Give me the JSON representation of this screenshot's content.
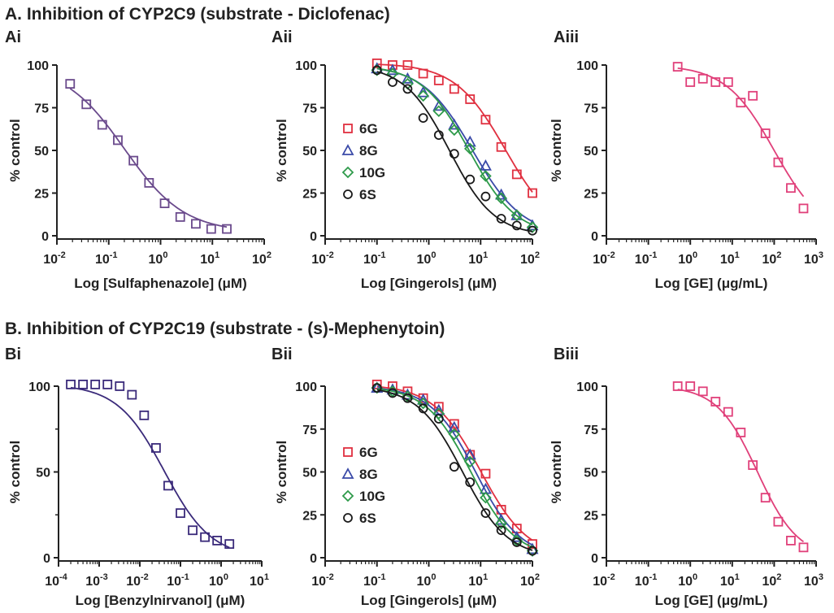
{
  "figure": {
    "sectionA_title": "A. Inhibition of CYP2C9 (substrate - Diclofenac)",
    "sectionB_title": "B. Inhibition of CYP2C19 (substrate - (s)-Mephenytoin)"
  },
  "chart_data": [
    {
      "id": "Ai",
      "type": "scatter",
      "panel_label": "Ai",
      "xlabel": "Log [Sulfaphenazole] (μM)",
      "ylabel": "% control",
      "xscale": "log",
      "xlim": [
        0.01,
        100
      ],
      "ylim": [
        0,
        100
      ],
      "xticks": [
        "10^-2",
        "10^-1",
        "10^0",
        "10^1",
        "10^2"
      ],
      "yticks": [
        0,
        25,
        50,
        75,
        100
      ],
      "legend": false,
      "series": [
        {
          "color": "#6a4a8c",
          "marker": "square",
          "x": [
            0.018,
            0.037,
            0.075,
            0.15,
            0.3,
            0.6,
            1.2,
            2.4,
            4.8,
            9.5,
            19
          ],
          "y": [
            89,
            77,
            65,
            56,
            44,
            31,
            19,
            11,
            7,
            4,
            4
          ],
          "fit": {
            "top": 100,
            "bottom": 2,
            "ic50": 0.2,
            "hill": 0.75
          }
        }
      ]
    },
    {
      "id": "Aii",
      "type": "scatter",
      "panel_label": "Aii",
      "xlabel": "Log [Gingerols] (μM)",
      "ylabel": "% control",
      "xscale": "log",
      "xlim": [
        0.01,
        100
      ],
      "ylim": [
        0,
        100
      ],
      "xticks": [
        "10^-2",
        "10^-1",
        "10^0",
        "10^1",
        "10^2"
      ],
      "yticks": [
        0,
        25,
        50,
        75,
        100
      ],
      "legend": true,
      "legend_position": "middle-left",
      "series": [
        {
          "name": "6G",
          "color": "#e03040",
          "marker": "square",
          "x": [
            0.1,
            0.2,
            0.39,
            0.78,
            1.56,
            3.1,
            6.25,
            12.5,
            25,
            50,
            100
          ],
          "y": [
            101,
            100,
            100,
            95,
            91,
            86,
            80,
            68,
            52,
            36,
            25
          ],
          "fit": {
            "top": 101,
            "bottom": 0,
            "ic50": 30,
            "hill": 0.9
          }
        },
        {
          "name": "8G",
          "color": "#3a4aa8",
          "marker": "triangle",
          "x": [
            0.1,
            0.2,
            0.39,
            0.78,
            1.56,
            3.1,
            6.25,
            12.5,
            25,
            50,
            100
          ],
          "y": [
            98,
            97,
            92,
            84,
            76,
            65,
            55,
            41,
            24,
            12,
            6
          ],
          "fit": {
            "top": 100,
            "bottom": 0,
            "ic50": 7,
            "hill": 0.9
          }
        },
        {
          "name": "10G",
          "color": "#2e9a4a",
          "marker": "diamond",
          "x": [
            0.1,
            0.2,
            0.39,
            0.78,
            1.56,
            3.1,
            6.25,
            12.5,
            25,
            50,
            100
          ],
          "y": [
            97,
            95,
            89,
            82,
            73,
            62,
            51,
            35,
            22,
            12,
            5
          ],
          "fit": {
            "top": 100,
            "bottom": 0,
            "ic50": 6,
            "hill": 0.95
          }
        },
        {
          "name": "6S",
          "color": "#1a1a1a",
          "marker": "circle",
          "x": [
            0.1,
            0.2,
            0.39,
            0.78,
            1.56,
            3.1,
            6.25,
            12.5,
            25,
            50,
            100
          ],
          "y": [
            97,
            90,
            86,
            69,
            59,
            48,
            33,
            23,
            10,
            6,
            3
          ],
          "fit": {
            "top": 100,
            "bottom": 0,
            "ic50": 2.5,
            "hill": 1.0
          }
        }
      ]
    },
    {
      "id": "Aiii",
      "type": "scatter",
      "panel_label": "Aiii",
      "xlabel": "Log [GE] (μg/mL)",
      "ylabel": "% control",
      "xscale": "log",
      "xlim": [
        0.01,
        1000
      ],
      "ylim": [
        0,
        100
      ],
      "xticks": [
        "10^-2",
        "10^-1",
        "10^0",
        "10^1",
        "10^2",
        "10^3"
      ],
      "yticks": [
        0,
        25,
        50,
        75,
        100
      ],
      "legend": false,
      "series": [
        {
          "color": "#e0407a",
          "marker": "square",
          "x": [
            0.5,
            1,
            2,
            4,
            8,
            16,
            31,
            62,
            125,
            250,
            500
          ],
          "y": [
            99,
            90,
            92,
            90,
            90,
            78,
            82,
            60,
            43,
            28,
            16
          ],
          "fit": {
            "top": 100,
            "bottom": 0,
            "ic50": 100,
            "hill": 0.75
          }
        }
      ]
    },
    {
      "id": "Bi",
      "type": "scatter",
      "panel_label": "Bi",
      "xlabel": "Log [Benzylnirvanol] (μM)",
      "ylabel": "% control",
      "xscale": "log",
      "xlim": [
        0.0001,
        10
      ],
      "ylim": [
        0,
        100
      ],
      "xticks": [
        "10^-4",
        "10^-3",
        "10^-2",
        "10^-1",
        "10^0",
        "10^1"
      ],
      "yticks": [
        0,
        50,
        100
      ],
      "legend": false,
      "series": [
        {
          "color": "#3a2a7a",
          "marker": "square",
          "x": [
            0.0002,
            0.0004,
            0.0008,
            0.0016,
            0.0032,
            0.0064,
            0.0128,
            0.025,
            0.05,
            0.1,
            0.2,
            0.4,
            0.8,
            1.6
          ],
          "y": [
            101,
            101,
            101,
            101,
            100,
            95,
            83,
            64,
            42,
            26,
            16,
            12,
            10,
            8
          ],
          "fit": {
            "top": 101,
            "bottom": 0,
            "ic50": 0.04,
            "hill": 0.75
          }
        }
      ]
    },
    {
      "id": "Bii",
      "type": "scatter",
      "panel_label": "Bii",
      "xlabel": "Log [Gingerols] (μM)",
      "ylabel": "% control",
      "xscale": "log",
      "xlim": [
        0.01,
        100
      ],
      "ylim": [
        0,
        100
      ],
      "xticks": [
        "10^-2",
        "10^-1",
        "10^0",
        "10^1",
        "10^2"
      ],
      "yticks": [
        0,
        25,
        50,
        75,
        100
      ],
      "legend": true,
      "legend_position": "middle-left",
      "series": [
        {
          "name": "6G",
          "color": "#e03040",
          "marker": "square",
          "x": [
            0.1,
            0.2,
            0.39,
            0.78,
            1.56,
            3.1,
            6.25,
            12.5,
            25,
            50,
            100
          ],
          "y": [
            101,
            100,
            97,
            93,
            88,
            78,
            60,
            49,
            28,
            17,
            8
          ],
          "fit": {
            "top": 101,
            "bottom": 0,
            "ic50": 10,
            "hill": 0.95
          }
        },
        {
          "name": "8G",
          "color": "#3a4aa8",
          "marker": "triangle",
          "x": [
            0.1,
            0.2,
            0.39,
            0.78,
            1.56,
            3.1,
            6.25,
            12.5,
            25,
            50,
            100
          ],
          "y": [
            99,
            98,
            95,
            92,
            86,
            76,
            60,
            40,
            22,
            12,
            5
          ],
          "fit": {
            "top": 100,
            "bottom": 0,
            "ic50": 8,
            "hill": 1.0
          }
        },
        {
          "name": "10G",
          "color": "#2e9a4a",
          "marker": "diamond",
          "x": [
            0.1,
            0.2,
            0.39,
            0.78,
            1.56,
            3.1,
            6.25,
            12.5,
            25,
            50,
            100
          ],
          "y": [
            99,
            97,
            94,
            90,
            84,
            72,
            56,
            35,
            20,
            10,
            4
          ],
          "fit": {
            "top": 100,
            "bottom": 0,
            "ic50": 6.5,
            "hill": 1.0
          }
        },
        {
          "name": "6S",
          "color": "#1a1a1a",
          "marker": "circle",
          "x": [
            0.1,
            0.2,
            0.39,
            0.78,
            1.56,
            3.1,
            6.25,
            12.5,
            25,
            50,
            100
          ],
          "y": [
            99,
            96,
            93,
            87,
            81,
            53,
            44,
            26,
            16,
            9,
            4
          ],
          "fit": {
            "top": 100,
            "bottom": 0,
            "ic50": 4.5,
            "hill": 1.0
          }
        }
      ]
    },
    {
      "id": "Biii",
      "type": "scatter",
      "panel_label": "Biii",
      "xlabel": "Log [GE] (μg/mL)",
      "ylabel": "% control",
      "xscale": "log",
      "xlim": [
        0.01,
        1000
      ],
      "ylim": [
        0,
        100
      ],
      "xticks": [
        "10^-2",
        "10^-1",
        "10^0",
        "10^1",
        "10^2",
        "10^3"
      ],
      "yticks": [
        0,
        25,
        50,
        75,
        100
      ],
      "legend": false,
      "series": [
        {
          "color": "#e0407a",
          "marker": "square",
          "x": [
            0.5,
            1,
            2,
            4,
            8,
            16,
            31,
            62,
            125,
            250,
            500
          ],
          "y": [
            100,
            100,
            97,
            91,
            85,
            73,
            54,
            35,
            21,
            10,
            6
          ],
          "fit": {
            "top": 100,
            "bottom": 0,
            "ic50": 40,
            "hill": 0.9
          }
        }
      ]
    }
  ]
}
